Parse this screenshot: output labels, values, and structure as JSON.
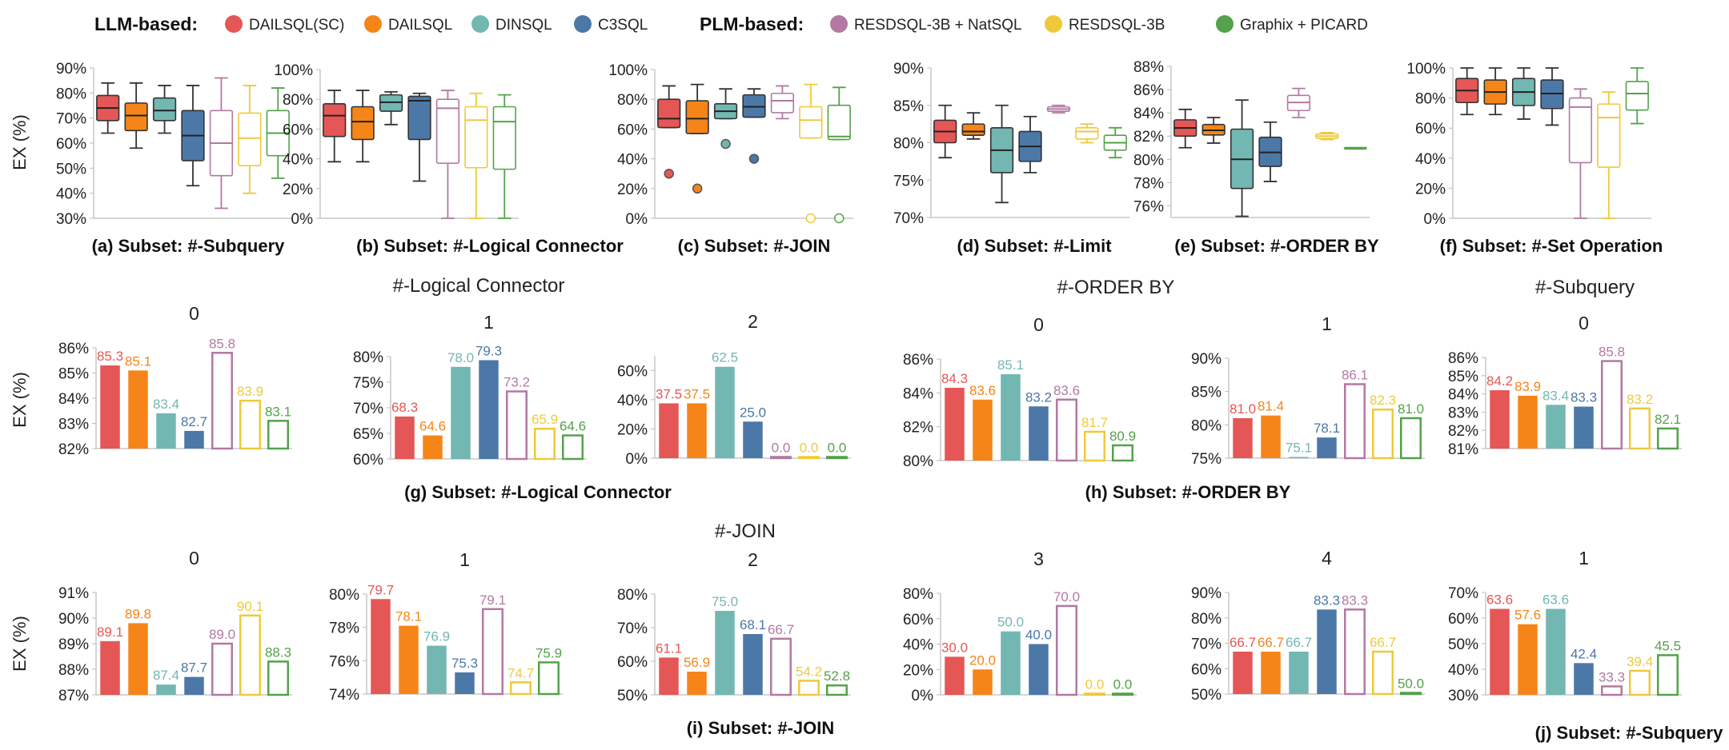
{
  "legend": {
    "llm_label": "LLM-based:",
    "plm_label": "PLM-based:",
    "items": [
      {
        "name": "DAILSQL(SC)",
        "color": "#e45756",
        "filled": true
      },
      {
        "name": "DAILSQL",
        "color": "#f58518",
        "filled": true
      },
      {
        "name": "DINSQL",
        "color": "#72b7b2",
        "filled": true
      },
      {
        "name": "C3SQL",
        "color": "#4c78a8",
        "filled": true
      },
      {
        "name": "RESDSQL-3B + NatSQL",
        "color": "#b279a2",
        "filled": false
      },
      {
        "name": "RESDSQL-3B",
        "color": "#eeca3b",
        "filled": false
      },
      {
        "name": "Graphix + PICARD",
        "color": "#54a24b",
        "filled": false
      }
    ]
  },
  "ylabel": "EX (%)",
  "chart_data": [
    {
      "type": "box",
      "caption": "(a) Subset: #-Subquery",
      "yticks": [
        "30%",
        "40%",
        "50%",
        "60%",
        "70%",
        "80%",
        "90%"
      ],
      "ylim": [
        30,
        90
      ],
      "boxes": [
        {
          "min": 64,
          "q1": 69,
          "median": 74,
          "q3": 79,
          "max": 84,
          "outliers": []
        },
        {
          "min": 58,
          "q1": 65,
          "median": 71,
          "q3": 76,
          "max": 84,
          "outliers": []
        },
        {
          "min": 64,
          "q1": 69,
          "median": 73,
          "q3": 78,
          "max": 83,
          "outliers": []
        },
        {
          "min": 43,
          "q1": 53,
          "median": 63,
          "q3": 73,
          "max": 83,
          "outliers": []
        },
        {
          "min": 34,
          "q1": 47,
          "median": 60,
          "q3": 73,
          "max": 86,
          "outliers": []
        },
        {
          "min": 40,
          "q1": 51,
          "median": 62,
          "q3": 72,
          "max": 83,
          "outliers": []
        },
        {
          "min": 46,
          "q1": 55,
          "median": 64,
          "q3": 73,
          "max": 82,
          "outliers": []
        }
      ]
    },
    {
      "type": "box",
      "caption": "(b) Subset: #-Logical Connector",
      "yticks": [
        "0%",
        "20%",
        "40%",
        "60%",
        "80%",
        "100%"
      ],
      "ylim": [
        0,
        100
      ],
      "boxes": [
        {
          "min": 38,
          "q1": 55,
          "median": 69,
          "q3": 77,
          "max": 86,
          "outliers": []
        },
        {
          "min": 38,
          "q1": 53,
          "median": 65,
          "q3": 75,
          "max": 86,
          "outliers": []
        },
        {
          "min": 63,
          "q1": 72,
          "median": 78,
          "q3": 83,
          "max": 85,
          "outliers": []
        },
        {
          "min": 25,
          "q1": 53,
          "median": 79,
          "q3": 82,
          "max": 84,
          "outliers": []
        },
        {
          "min": 0,
          "q1": 37,
          "median": 74,
          "q3": 80,
          "max": 86,
          "outliers": []
        },
        {
          "min": 0,
          "q1": 34,
          "median": 66,
          "q3": 75,
          "max": 84,
          "outliers": []
        },
        {
          "min": 0,
          "q1": 33,
          "median": 65,
          "q3": 75,
          "max": 83,
          "outliers": []
        }
      ]
    },
    {
      "type": "box",
      "caption": "(c) Subset: #-JOIN",
      "yticks": [
        "0%",
        "20%",
        "40%",
        "60%",
        "80%",
        "100%"
      ],
      "ylim": [
        0,
        100
      ],
      "boxes": [
        {
          "min": 61,
          "q1": 61,
          "median": 67,
          "q3": 80,
          "max": 89,
          "outliers": [
            30
          ]
        },
        {
          "min": 57,
          "q1": 57,
          "median": 67,
          "q3": 79,
          "max": 90,
          "outliers": [
            20
          ]
        },
        {
          "min": 67,
          "q1": 67,
          "median": 72,
          "q3": 77,
          "max": 87,
          "outliers": [
            50
          ]
        },
        {
          "min": 68,
          "q1": 68,
          "median": 75,
          "q3": 83,
          "max": 87,
          "outliers": [
            40
          ]
        },
        {
          "min": 67,
          "q1": 71,
          "median": 79,
          "q3": 84,
          "max": 89,
          "outliers": []
        },
        {
          "min": 54,
          "q1": 54,
          "median": 66,
          "q3": 75,
          "max": 90,
          "outliers": [
            0
          ]
        },
        {
          "min": 53,
          "q1": 53,
          "median": 55,
          "q3": 76,
          "max": 88,
          "outliers": [
            0
          ]
        }
      ]
    },
    {
      "type": "box",
      "caption": "(d) Subset: #-Limit",
      "yticks": [
        "70%",
        "75%",
        "80%",
        "85%",
        "90%"
      ],
      "ylim": [
        70,
        90
      ],
      "boxes": [
        {
          "min": 78,
          "q1": 80,
          "median": 81.5,
          "q3": 83,
          "max": 85,
          "outliers": []
        },
        {
          "min": 80.5,
          "q1": 81,
          "median": 81.5,
          "q3": 82.5,
          "max": 84,
          "outliers": []
        },
        {
          "min": 72,
          "q1": 76,
          "median": 79,
          "q3": 82,
          "max": 85,
          "outliers": []
        },
        {
          "min": 76,
          "q1": 77.5,
          "median": 79.5,
          "q3": 81.5,
          "max": 83.5,
          "outliers": []
        },
        {
          "min": 84,
          "q1": 84.2,
          "median": 84.5,
          "q3": 84.8,
          "max": 85,
          "outliers": []
        },
        {
          "min": 80,
          "q1": 80.5,
          "median": 81.5,
          "q3": 82,
          "max": 82.5,
          "outliers": []
        },
        {
          "min": 78,
          "q1": 79,
          "median": 80,
          "q3": 81,
          "max": 82,
          "outliers": []
        }
      ]
    },
    {
      "type": "box",
      "caption": "(e) Subset: #-ORDER BY",
      "yticks": [
        "76%",
        "78%",
        "80%",
        "82%",
        "84%",
        "86%",
        "88%"
      ],
      "ylim": [
        75,
        88
      ],
      "boxes": [
        {
          "min": 81,
          "q1": 82,
          "median": 82.7,
          "q3": 83.4,
          "max": 84.3,
          "outliers": []
        },
        {
          "min": 81.4,
          "q1": 82.1,
          "median": 82.5,
          "q3": 83,
          "max": 83.6,
          "outliers": []
        },
        {
          "min": 75.1,
          "q1": 77.5,
          "median": 80,
          "q3": 82.6,
          "max": 85.1,
          "outliers": []
        },
        {
          "min": 78.1,
          "q1": 79.4,
          "median": 80.6,
          "q3": 81.9,
          "max": 83.2,
          "outliers": []
        },
        {
          "min": 83.6,
          "q1": 84.2,
          "median": 84.9,
          "q3": 85.5,
          "max": 86.1,
          "outliers": []
        },
        {
          "min": 81.7,
          "q1": 81.8,
          "median": 82,
          "q3": 82.2,
          "max": 82.3,
          "outliers": []
        },
        {
          "min": 80.9,
          "q1": 80.9,
          "median": 81,
          "q3": 81,
          "max": 81,
          "outliers": []
        }
      ]
    },
    {
      "type": "box",
      "caption": "(f) Subset: #-Set Operation",
      "yticks": [
        "0%",
        "20%",
        "40%",
        "60%",
        "80%",
        "100%"
      ],
      "ylim": [
        0,
        100
      ],
      "boxes": [
        {
          "min": 69,
          "q1": 77,
          "median": 85,
          "q3": 93,
          "max": 100,
          "outliers": []
        },
        {
          "min": 69,
          "q1": 76,
          "median": 84,
          "q3": 92,
          "max": 100,
          "outliers": []
        },
        {
          "min": 66,
          "q1": 75,
          "median": 84,
          "q3": 93,
          "max": 100,
          "outliers": []
        },
        {
          "min": 62,
          "q1": 73,
          "median": 83,
          "q3": 92,
          "max": 100,
          "outliers": []
        },
        {
          "min": 0,
          "q1": 37,
          "median": 74,
          "q3": 80,
          "max": 86,
          "outliers": []
        },
        {
          "min": 0,
          "q1": 34,
          "median": 67,
          "q3": 76,
          "max": 84,
          "outliers": []
        },
        {
          "min": 63,
          "q1": 72,
          "median": 83,
          "q3": 91,
          "max": 100,
          "outliers": []
        }
      ]
    },
    {
      "type": "bar",
      "group_title": "#-Logical Connector",
      "panel_title": "0",
      "yticks": [
        "82%",
        "83%",
        "84%",
        "85%",
        "86%"
      ],
      "ylim": [
        82,
        86
      ],
      "values": [
        85.3,
        85.1,
        83.4,
        82.7,
        85.8,
        83.9,
        83.1
      ]
    },
    {
      "type": "bar",
      "panel_title": "1",
      "yticks": [
        "60%",
        "65%",
        "70%",
        "75%",
        "80%"
      ],
      "ylim": [
        60,
        80
      ],
      "values": [
        68.3,
        64.6,
        78.0,
        79.3,
        73.2,
        65.9,
        64.6
      ]
    },
    {
      "type": "bar",
      "panel_title": "2",
      "caption": "(g) Subset: #-Logical Connector",
      "yticks": [
        "0%",
        "20%",
        "40%",
        "60%"
      ],
      "ylim": [
        0,
        70
      ],
      "values": [
        37.5,
        37.5,
        62.5,
        25.0,
        0.0,
        0.0,
        0.0
      ]
    },
    {
      "type": "bar",
      "group_title": "#-ORDER BY",
      "panel_title": "0",
      "yticks": [
        "80%",
        "82%",
        "84%",
        "86%"
      ],
      "ylim": [
        80,
        86
      ],
      "values": [
        84.3,
        83.6,
        85.1,
        83.2,
        83.6,
        81.7,
        80.9
      ]
    },
    {
      "type": "bar",
      "panel_title": "1",
      "caption": "(h) Subset: #-ORDER BY",
      "yticks": [
        "75%",
        "80%",
        "85%",
        "90%"
      ],
      "ylim": [
        75,
        90
      ],
      "values": [
        81.0,
        81.4,
        75.1,
        78.1,
        86.1,
        82.3,
        81.0
      ]
    },
    {
      "type": "bar",
      "group_title": "#-Subquery",
      "panel_title": "0",
      "yticks": [
        "81%",
        "82%",
        "83%",
        "84%",
        "85%",
        "86%"
      ],
      "ylim": [
        81,
        86
      ],
      "values": [
        84.2,
        83.9,
        83.4,
        83.3,
        85.8,
        83.2,
        82.1
      ]
    },
    {
      "type": "bar",
      "group_title": "#-JOIN",
      "panel_title": "0",
      "yticks": [
        "87%",
        "88%",
        "89%",
        "90%",
        "91%"
      ],
      "ylim": [
        87,
        91
      ],
      "values": [
        89.1,
        89.8,
        87.4,
        87.7,
        89.0,
        90.1,
        88.3
      ]
    },
    {
      "type": "bar",
      "panel_title": "1",
      "yticks": [
        "74%",
        "76%",
        "78%",
        "80%"
      ],
      "ylim": [
        74,
        80
      ],
      "values": [
        79.7,
        78.1,
        76.9,
        75.3,
        79.1,
        74.7,
        75.9
      ]
    },
    {
      "type": "bar",
      "panel_title": "2",
      "caption": "(i) Subset: #-JOIN",
      "yticks": [
        "50%",
        "60%",
        "70%",
        "80%"
      ],
      "ylim": [
        50,
        80
      ],
      "values": [
        61.1,
        56.9,
        75.0,
        68.1,
        66.7,
        54.2,
        52.8
      ]
    },
    {
      "type": "bar",
      "panel_title": "3",
      "yticks": [
        "0%",
        "20%",
        "40%",
        "60%",
        "80%"
      ],
      "ylim": [
        0,
        80
      ],
      "values": [
        30.0,
        20.0,
        50.0,
        40.0,
        70.0,
        0.0,
        0.0
      ]
    },
    {
      "type": "bar",
      "panel_title": "4",
      "yticks": [
        "50%",
        "60%",
        "70%",
        "80%",
        "90%"
      ],
      "ylim": [
        50,
        90
      ],
      "values": [
        66.7,
        66.7,
        66.7,
        83.3,
        83.3,
        66.7,
        50.0
      ]
    },
    {
      "type": "bar",
      "panel_title": "1",
      "caption": "(j) Subset: #-Subquery",
      "yticks": [
        "30%",
        "40%",
        "50%",
        "60%",
        "70%"
      ],
      "ylim": [
        30,
        70
      ],
      "values": [
        63.6,
        57.6,
        63.6,
        42.4,
        33.3,
        39.4,
        45.5
      ]
    }
  ]
}
